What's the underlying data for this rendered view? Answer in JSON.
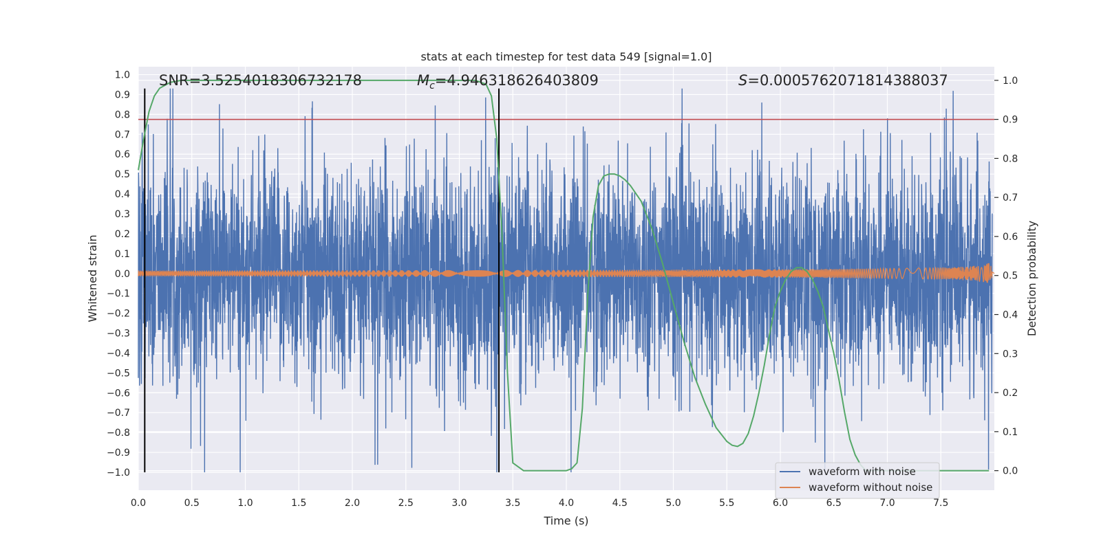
{
  "chart_data": {
    "type": "line",
    "title": "stats at each timestep for test data 549 [signal=1.0]",
    "xlabel": "Time (s)",
    "ylabel_left": "Whitened strain",
    "ylabel_right": "Detection probability",
    "xlim": [
      0.0,
      8.0
    ],
    "ylim_left": [
      -1.09,
      1.04
    ],
    "ylim_right": [
      -0.05,
      1.035
    ],
    "x_ticks": [
      "0.0",
      "0.5",
      "1.0",
      "1.5",
      "2.0",
      "2.5",
      "3.0",
      "3.5",
      "4.0",
      "4.5",
      "5.0",
      "5.5",
      "6.0",
      "6.5",
      "7.0",
      "7.5"
    ],
    "x_tick_values": [
      0.0,
      0.5,
      1.0,
      1.5,
      2.0,
      2.5,
      3.0,
      3.5,
      4.0,
      4.5,
      5.0,
      5.5,
      6.0,
      6.5,
      7.0,
      7.5
    ],
    "y_left_ticks": [
      "1.0",
      "0.9",
      "0.8",
      "0.7",
      "0.6",
      "0.5",
      "0.4",
      "0.3",
      "0.2",
      "0.1",
      "0.0",
      "−0.1",
      "−0.2",
      "−0.3",
      "−0.4",
      "−0.5",
      "−0.6",
      "−0.7",
      "−0.8",
      "−0.9",
      "−1.0"
    ],
    "y_left_tick_values": [
      1.0,
      0.9,
      0.8,
      0.7,
      0.6,
      0.5,
      0.4,
      0.3,
      0.2,
      0.1,
      0.0,
      -0.1,
      -0.2,
      -0.3,
      -0.4,
      -0.5,
      -0.6,
      -0.7,
      -0.8,
      -0.9,
      -1.0
    ],
    "y_right_ticks": [
      "1.0",
      "0.9",
      "0.8",
      "0.7",
      "0.6",
      "0.5",
      "0.4",
      "0.3",
      "0.2",
      "0.1",
      "0.0"
    ],
    "y_right_tick_values": [
      1.0,
      0.9,
      0.8,
      0.7,
      0.6,
      0.5,
      0.4,
      0.3,
      0.2,
      0.1,
      0.0
    ],
    "annotations": {
      "snr": "SNR=3.5254018306732178",
      "mc_symbol": "M",
      "mc_subscript": "c",
      "mc_value": "=4.946318626403809",
      "s_symbol": "S",
      "s_value": "=0.0005762071814388037"
    },
    "threshold": {
      "value": 0.9,
      "axis": "right",
      "color": "#c44e52"
    },
    "vertical_lines": [
      0.06,
      3.37
    ],
    "legend": {
      "placement": "lower-right",
      "entries": [
        {
          "label": "waveform with noise",
          "color": "#4c72b0"
        },
        {
          "label": "waveform without noise",
          "color": "#dd8452"
        }
      ]
    },
    "series": [
      {
        "name": "waveform with noise",
        "axis": "left",
        "color": "#4c72b0",
        "kind": "noise",
        "envelope_note": "dense whitened noise, approx -1.0 to 0.93"
      },
      {
        "name": "waveform without noise",
        "axis": "left",
        "color": "#dd8452",
        "kind": "chirp",
        "amplitude_start": 0.015,
        "amplitude_end": 0.2,
        "t_end": 7.98
      },
      {
        "axis": "right",
        "color": "#55a868",
        "kind": "probability",
        "x": [
          0.0,
          0.05,
          0.1,
          0.15,
          0.2,
          0.3,
          0.4,
          0.6,
          1.0,
          2.0,
          3.0,
          3.15,
          3.25,
          3.3,
          3.35,
          3.4,
          3.45,
          3.5,
          3.6,
          3.8,
          4.0,
          4.05,
          4.1,
          4.15,
          4.2,
          4.25,
          4.3,
          4.35,
          4.4,
          4.45,
          4.5,
          4.55,
          4.6,
          4.7,
          4.8,
          4.9,
          5.0,
          5.1,
          5.2,
          5.3,
          5.4,
          5.5,
          5.55,
          5.6,
          5.65,
          5.7,
          5.75,
          5.8,
          5.85,
          5.9,
          5.95,
          6.0,
          6.05,
          6.1,
          6.15,
          6.2,
          6.25,
          6.3,
          6.35,
          6.4,
          6.45,
          6.5,
          6.55,
          6.6,
          6.65,
          6.7,
          6.75,
          6.8,
          6.9,
          7.0,
          7.2,
          7.5,
          7.8,
          7.95
        ],
        "y": [
          0.77,
          0.85,
          0.92,
          0.96,
          0.98,
          0.995,
          1.0,
          1.0,
          1.0,
          1.0,
          1.0,
          1.0,
          0.99,
          0.96,
          0.85,
          0.6,
          0.25,
          0.02,
          0.0,
          0.0,
          0.0,
          0.005,
          0.02,
          0.16,
          0.45,
          0.65,
          0.73,
          0.755,
          0.76,
          0.76,
          0.755,
          0.745,
          0.73,
          0.69,
          0.62,
          0.53,
          0.43,
          0.33,
          0.24,
          0.17,
          0.11,
          0.075,
          0.065,
          0.062,
          0.07,
          0.095,
          0.14,
          0.2,
          0.27,
          0.35,
          0.42,
          0.46,
          0.49,
          0.51,
          0.52,
          0.52,
          0.51,
          0.49,
          0.46,
          0.42,
          0.36,
          0.3,
          0.23,
          0.15,
          0.08,
          0.04,
          0.015,
          0.0,
          0.0,
          0.0,
          0.0,
          0.0,
          0.0,
          0.0
        ]
      }
    ]
  }
}
